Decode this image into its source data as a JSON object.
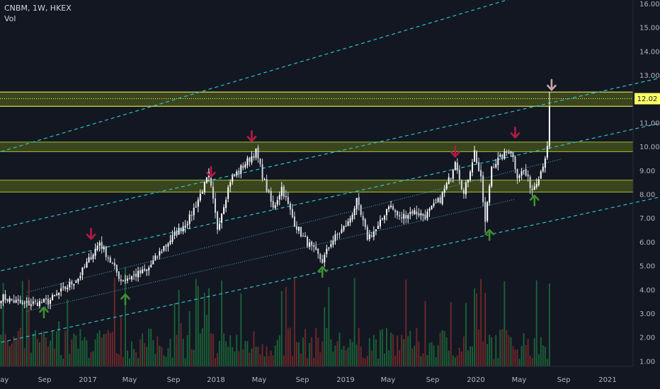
{
  "header": {
    "symbol_line": "CNBM, 1W, HKEX",
    "indicator": "Vol"
  },
  "colors": {
    "background": "#131722",
    "candle_up": "#ffffff",
    "candle_down": "#d1d4dc",
    "zone_fill": "#5d6b1a",
    "zone_line": "#9fc43a",
    "resistance_line": "#ffff66",
    "channel_dashed": "#2bc0c9",
    "channel_dotted": "#3ab7c2",
    "arrow_up": "#3f8f2c",
    "arrow_down": "#b01c45",
    "arrow_top": "#c9a3a8",
    "vol_up": "#1c6b3a",
    "vol_down": "#7a2a2c",
    "price_tag_bg": "#ffff66",
    "axis_text": "#b2b5be"
  },
  "chart_data": {
    "type": "candlestick",
    "title": "CNBM, 1W, HKEX",
    "indicator": "Vol",
    "yaxis": {
      "ticks": [
        "1.00",
        "2.00",
        "3.00",
        "4.00",
        "5.00",
        "6.00",
        "7.00",
        "8.00",
        "9.00",
        "10.00",
        "11.00",
        "12.00",
        "13.00",
        "14.00",
        "15.00",
        "16.00"
      ],
      "range": [
        0.2,
        16.3
      ]
    },
    "xaxis": {
      "ticks": [
        "May",
        "Sep",
        "2017",
        "May",
        "Sep",
        "2018",
        "May",
        "Sep",
        "2019",
        "May",
        "Sep",
        "2020",
        "May",
        "Sep",
        "2021"
      ]
    },
    "last_price": "12.02",
    "zones": [
      {
        "low": 11.7,
        "high": 12.3
      },
      {
        "low": 9.8,
        "high": 10.2
      },
      {
        "low": 8.1,
        "high": 8.6
      }
    ],
    "anchors": [
      {
        "t": 0,
        "p": 3.7
      },
      {
        "t": 10,
        "p": 3.4
      },
      {
        "t": 22,
        "p": 3.5
      },
      {
        "t": 36,
        "p": 4.5
      },
      {
        "t": 46,
        "p": 6.0
      },
      {
        "t": 56,
        "p": 4.4
      },
      {
        "t": 68,
        "p": 4.8
      },
      {
        "t": 76,
        "p": 5.8
      },
      {
        "t": 88,
        "p": 7.0
      },
      {
        "t": 97,
        "p": 8.8
      },
      {
        "t": 101,
        "p": 6.6
      },
      {
        "t": 107,
        "p": 8.6
      },
      {
        "t": 114,
        "p": 9.3
      },
      {
        "t": 119,
        "p": 9.8
      },
      {
        "t": 122,
        "p": 8.8
      },
      {
        "t": 127,
        "p": 7.4
      },
      {
        "t": 131,
        "p": 8.3
      },
      {
        "t": 137,
        "p": 6.8
      },
      {
        "t": 141,
        "p": 6.2
      },
      {
        "t": 150,
        "p": 5.2
      },
      {
        "t": 154,
        "p": 6.0
      },
      {
        "t": 162,
        "p": 6.8
      },
      {
        "t": 166,
        "p": 7.7
      },
      {
        "t": 171,
        "p": 6.2
      },
      {
        "t": 176,
        "p": 6.6
      },
      {
        "t": 181,
        "p": 7.6
      },
      {
        "t": 186,
        "p": 7.0
      },
      {
        "t": 192,
        "p": 7.3
      },
      {
        "t": 198,
        "p": 7.1
      },
      {
        "t": 205,
        "p": 7.8
      },
      {
        "t": 210,
        "p": 8.8
      },
      {
        "t": 212,
        "p": 9.5
      },
      {
        "t": 216,
        "p": 8.0
      },
      {
        "t": 221,
        "p": 9.8
      },
      {
        "t": 224,
        "p": 8.6
      },
      {
        "t": 226,
        "p": 6.8
      },
      {
        "t": 229,
        "p": 9.2
      },
      {
        "t": 234,
        "p": 9.6
      },
      {
        "t": 238,
        "p": 9.9
      },
      {
        "t": 241,
        "p": 8.8
      },
      {
        "t": 244,
        "p": 9.0
      },
      {
        "t": 248,
        "p": 8.2
      },
      {
        "t": 252,
        "p": 9.0
      },
      {
        "t": 255,
        "p": 9.9
      },
      {
        "t": 256,
        "p": 11.7
      }
    ],
    "markers": {
      "up": [
        {
          "t": 20,
          "p": 3.05
        },
        {
          "t": 58,
          "p": 3.6
        },
        {
          "t": 150,
          "p": 4.75
        },
        {
          "t": 228,
          "p": 6.3
        },
        {
          "t": 249,
          "p": 7.75
        }
      ],
      "down": [
        {
          "t": 42,
          "p": 6.35
        },
        {
          "t": 98,
          "p": 8.95
        },
        {
          "t": 117,
          "p": 10.45
        },
        {
          "t": 212,
          "p": 9.8
        },
        {
          "t": 240,
          "p": 10.6
        }
      ],
      "top": [
        {
          "t": 257,
          "p": 12.6
        }
      ]
    },
    "channels": {
      "dashed": [
        {
          "t1": 0,
          "p1": 1.8,
          "t2": 318,
          "p2": 8.1
        },
        {
          "t1": 0,
          "p1": 4.8,
          "t2": 318,
          "p2": 11.2
        },
        {
          "t1": 0,
          "p1": 6.6,
          "t2": 318,
          "p2": 13.1
        },
        {
          "t1": 0,
          "p1": 9.8,
          "t2": 245,
          "p2": 16.4
        }
      ],
      "dotted": [
        {
          "t1": 12,
          "p1": 3.1,
          "t2": 240,
          "p2": 7.8
        },
        {
          "t1": 12,
          "p1": 3.9,
          "t2": 262,
          "p2": 9.5
        }
      ]
    }
  }
}
